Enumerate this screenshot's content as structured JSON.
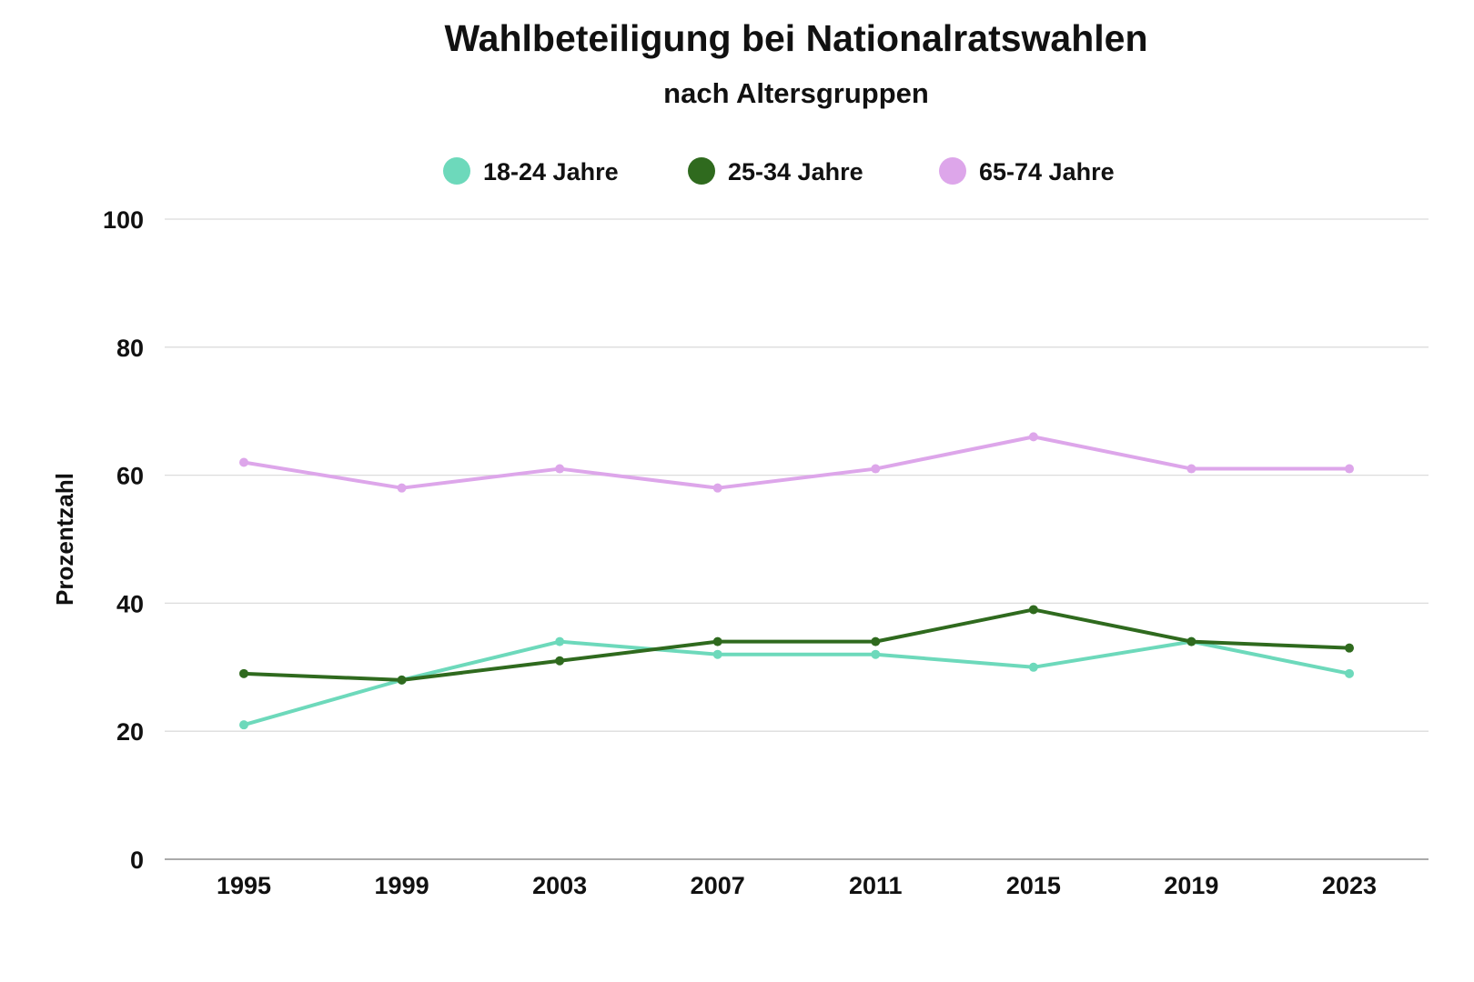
{
  "chart_data": {
    "type": "line",
    "title": "Wahlbeteiligung bei Nationalratswahlen",
    "subtitle": "nach Altersgruppen",
    "xlabel": "",
    "ylabel": "Prozentzahl",
    "categories": [
      "1995",
      "1999",
      "2003",
      "2007",
      "2011",
      "2015",
      "2019",
      "2023"
    ],
    "ylim": [
      0,
      100
    ],
    "yticks": [
      0,
      20,
      40,
      60,
      80,
      100
    ],
    "grid": true,
    "legend_position": "top",
    "series": [
      {
        "name": "18-24 Jahre",
        "color": "#6dd9bb",
        "values": [
          21,
          28,
          34,
          32,
          32,
          30,
          34,
          29
        ]
      },
      {
        "name": "25-34 Jahre",
        "color": "#2f6a1e",
        "values": [
          29,
          28,
          31,
          34,
          34,
          39,
          34,
          33
        ]
      },
      {
        "name": "65-74 Jahre",
        "color": "#dda6ea",
        "values": [
          62,
          58,
          61,
          58,
          61,
          66,
          61,
          61
        ]
      }
    ]
  }
}
